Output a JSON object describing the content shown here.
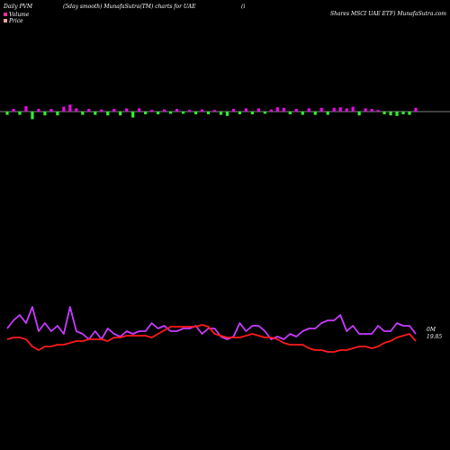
{
  "header": {
    "left": "Daily PVM",
    "center": "(5day smooth) MunafaSutra(TM) charts for UAE",
    "bracket": "(i",
    "right": "Shares MSCI UAE ETF) MunafaSutra.com"
  },
  "legend": {
    "volume_label": "Volume",
    "price_label": "Price",
    "volume_color": "#ff2e9a",
    "price_color": "#ffa3a3"
  },
  "chart_data": {
    "type": "bar+line",
    "n": 66,
    "volume": {
      "values": [
        -0.6,
        0.5,
        -0.6,
        1,
        -1.4,
        0.5,
        -0.7,
        0.5,
        -0.7,
        0.9,
        1.3,
        0.6,
        -0.6,
        0.5,
        -0.6,
        0.4,
        -0.7,
        0.5,
        -0.7,
        0.6,
        -1.1,
        0.6,
        -0.5,
        0.3,
        -0.5,
        0.4,
        -0.4,
        0.5,
        -0.4,
        0.3,
        -0.5,
        0.4,
        -0.5,
        0.3,
        -0.6,
        -0.8,
        0.5,
        -0.5,
        0.6,
        -0.5,
        0.6,
        -0.4,
        0.4,
        0.8,
        0.7,
        -0.5,
        0.5,
        -0.6,
        0.6,
        -0.6,
        0.7,
        -0.6,
        0.7,
        0.8,
        0.6,
        0.9,
        -0.7,
        0.6,
        0.5,
        0.3,
        -0.5,
        -0.7,
        -0.8,
        -0.5,
        -0.6,
        0.7
      ],
      "positive_color": "#e60de6",
      "negative_color": "#2ff22f"
    },
    "volume_line": {
      "values": [
        22,
        25,
        27,
        24,
        30,
        21,
        24,
        21,
        23,
        20,
        30,
        21,
        20,
        18,
        21,
        18,
        22,
        20,
        19,
        21,
        20,
        21,
        21,
        24,
        22,
        23,
        21,
        21,
        22,
        22,
        23,
        20,
        22,
        22,
        19,
        18,
        19,
        24,
        21,
        23,
        23,
        21,
        18,
        19,
        18,
        20,
        19,
        21,
        22,
        22,
        24,
        25,
        25,
        27,
        21,
        23,
        20,
        20,
        20,
        23,
        21,
        21,
        24,
        23,
        23,
        20
      ],
      "color": "#c83cff",
      "end_label": "0M"
    },
    "price_line": {
      "values": [
        19.86,
        19.87,
        19.87,
        19.86,
        19.82,
        19.8,
        19.82,
        19.82,
        19.83,
        19.83,
        19.84,
        19.85,
        19.85,
        19.86,
        19.86,
        19.86,
        19.85,
        19.87,
        19.87,
        19.88,
        19.88,
        19.88,
        19.88,
        19.87,
        19.89,
        19.91,
        19.93,
        19.93,
        19.93,
        19.93,
        19.93,
        19.94,
        19.93,
        19.89,
        19.88,
        19.87,
        19.87,
        19.87,
        19.88,
        19.89,
        19.88,
        19.87,
        19.87,
        19.86,
        19.84,
        19.83,
        19.83,
        19.83,
        19.81,
        19.8,
        19.8,
        19.79,
        19.79,
        19.8,
        19.8,
        19.81,
        19.82,
        19.82,
        19.81,
        19.82,
        19.84,
        19.85,
        19.87,
        19.88,
        19.89,
        19.85
      ],
      "color": "#ff1a1a",
      "end_label": "19.85"
    }
  }
}
